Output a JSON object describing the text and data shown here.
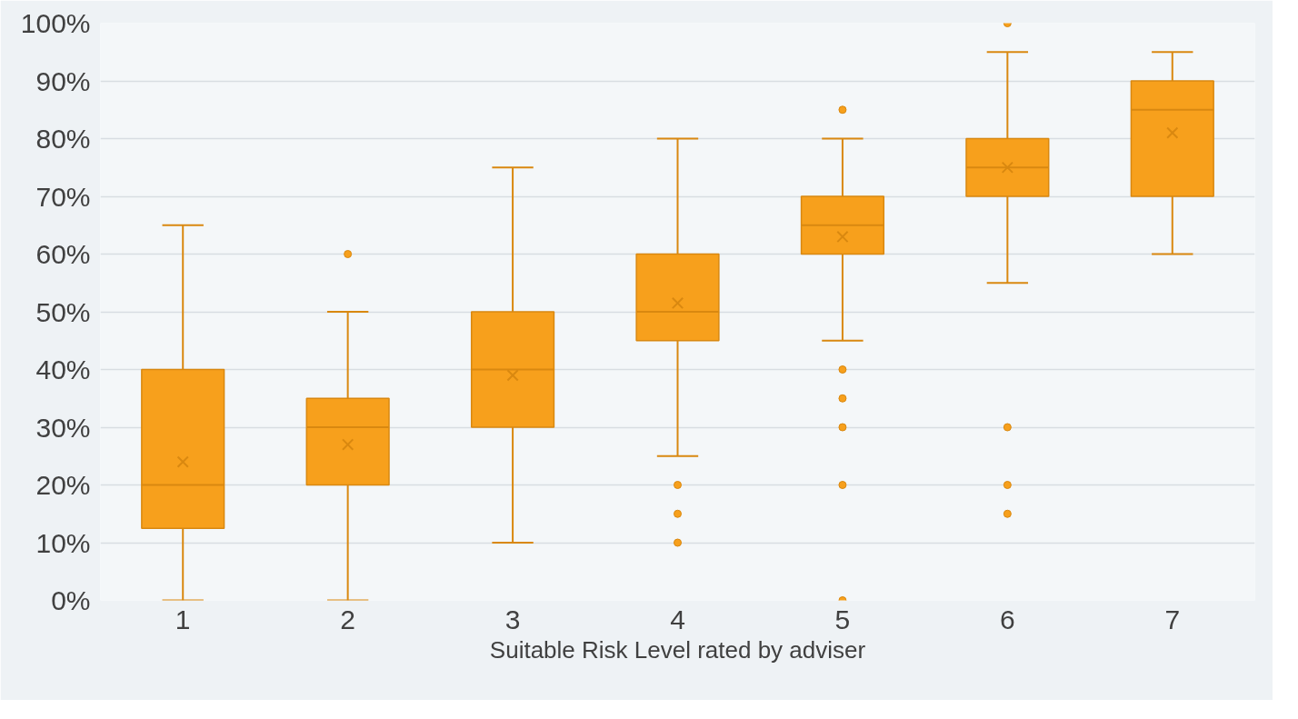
{
  "chart_data": {
    "type": "box",
    "xlabel": "Suitable Risk Level rated by adviser",
    "categories": [
      "1",
      "2",
      "3",
      "4",
      "5",
      "6",
      "7"
    ],
    "color": "#f7a01c",
    "boxes": [
      {
        "low": 0,
        "q1": 12.5,
        "median": 20,
        "q3": 40,
        "high": 65,
        "mean": 24
      },
      {
        "low": 0,
        "q1": 20,
        "median": 30,
        "q3": 35,
        "high": 50,
        "mean": 27,
        "outliers": [
          60
        ]
      },
      {
        "low": 10,
        "q1": 30,
        "median": 40,
        "q3": 50,
        "high": 75,
        "mean": 39
      },
      {
        "low": 25,
        "q1": 45,
        "median": 50,
        "q3": 60,
        "high": 80,
        "mean": 51.5,
        "outliers": [
          20,
          15,
          10
        ]
      },
      {
        "low": 45,
        "q1": 60,
        "median": 65,
        "q3": 70,
        "high": 80,
        "mean": 63,
        "outliers": [
          85,
          40,
          35,
          30,
          20,
          0
        ]
      },
      {
        "low": 55,
        "q1": 70,
        "median": 75,
        "q3": 80,
        "high": 95,
        "mean": 75,
        "outliers": [
          100,
          30,
          20,
          15
        ]
      },
      {
        "low": 60,
        "q1": 70,
        "median": 85,
        "q3": 90,
        "high": 95,
        "mean": 81
      }
    ],
    "ylim": [
      0,
      100
    ],
    "yticks": [
      {
        "value": 0,
        "label": "0%"
      },
      {
        "value": 10,
        "label": "10%"
      },
      {
        "value": 20,
        "label": "20%"
      },
      {
        "value": 30,
        "label": "30%"
      },
      {
        "value": 40,
        "label": "40%"
      },
      {
        "value": 50,
        "label": "50%"
      },
      {
        "value": 60,
        "label": "60%"
      },
      {
        "value": 70,
        "label": "70%"
      },
      {
        "value": 80,
        "label": "80%"
      },
      {
        "value": 90,
        "label": "90%"
      },
      {
        "value": 100,
        "label": "100%"
      }
    ],
    "grid": "y"
  }
}
